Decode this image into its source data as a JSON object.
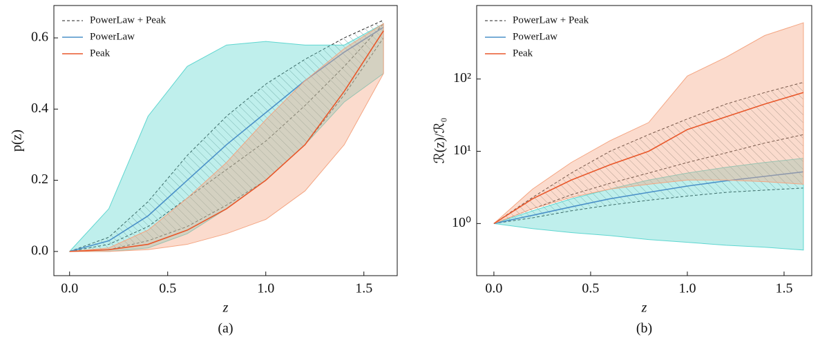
{
  "chart_data": [
    {
      "type": "line",
      "caption": "(a)",
      "xlabel": "z",
      "ylabel": "p(z)",
      "log_y": false,
      "xlim": [
        -0.08,
        1.67
      ],
      "ylim": [
        -0.068,
        0.691
      ],
      "xticks": [
        {
          "value": 0,
          "label": "0.0"
        },
        0.5,
        {
          "value": 1,
          "label": "1.0"
        },
        1.5
      ],
      "yticks": [
        {
          "value": 0,
          "label": "0.0"
        },
        0.2,
        0.4,
        0.6
      ],
      "legend": "upper left",
      "x": [
        0,
        0.2,
        0.4,
        0.6,
        0.8,
        1.0,
        1.2,
        1.4,
        1.6
      ],
      "series": [
        {
          "name": "PowerLaw + Peak",
          "color": "#222222",
          "dash": true,
          "values": [
            0,
            0.02,
            0.07,
            0.15,
            0.23,
            0.31,
            0.41,
            0.52,
            0.64
          ],
          "lower": [
            0,
            0.005,
            0.03,
            0.07,
            0.13,
            0.2,
            0.3,
            0.44,
            0.6
          ],
          "upper": [
            0,
            0.04,
            0.14,
            0.27,
            0.38,
            0.47,
            0.54,
            0.6,
            0.65
          ]
        },
        {
          "name": "PowerLaw",
          "color": "#4a90c8",
          "band_color": "#5ed6d0",
          "values": [
            0,
            0.03,
            0.1,
            0.2,
            0.3,
            0.39,
            0.48,
            0.56,
            0.63
          ],
          "lower": [
            0,
            0.0,
            0.01,
            0.05,
            0.12,
            0.2,
            0.3,
            0.42,
            0.5
          ],
          "upper": [
            0,
            0.12,
            0.38,
            0.52,
            0.58,
            0.59,
            0.58,
            0.58,
            0.64
          ]
        },
        {
          "name": "Peak",
          "color": "#e8572a",
          "band_color": "#f4a582",
          "values": [
            0,
            0.005,
            0.02,
            0.06,
            0.12,
            0.2,
            0.3,
            0.45,
            0.62
          ],
          "lower": [
            0,
            0,
            0.005,
            0.02,
            0.05,
            0.09,
            0.17,
            0.3,
            0.5
          ],
          "upper": [
            0,
            0.01,
            0.06,
            0.15,
            0.25,
            0.37,
            0.48,
            0.57,
            0.64
          ]
        }
      ]
    },
    {
      "type": "line",
      "caption": "(b)",
      "xlabel": "z",
      "ylabel": "ℛ(z)/ℛ₀",
      "log_y": true,
      "xlim": [
        -0.089,
        1.643
      ],
      "ylim": [
        0.19,
        1040
      ],
      "xticks": [
        {
          "value": 0,
          "label": "0.0"
        },
        0.5,
        {
          "value": 1,
          "label": "1.0"
        },
        1.5
      ],
      "yticks": [
        {
          "value": 1,
          "label": "10⁰"
        },
        {
          "value": 10,
          "label": "10¹"
        },
        {
          "value": 100,
          "label": "10²"
        }
      ],
      "legend": "upper left",
      "x": [
        0,
        0.2,
        0.4,
        0.6,
        0.8,
        1.0,
        1.2,
        1.4,
        1.6
      ],
      "series": [
        {
          "name": "PowerLaw + Peak",
          "color": "#222222",
          "dash": true,
          "values": [
            1,
            1.6,
            2.5,
            3.6,
            5,
            7,
            9.5,
            13,
            17
          ],
          "lower": [
            1,
            1.2,
            1.5,
            1.8,
            2.1,
            2.4,
            2.7,
            2.9,
            3.1
          ],
          "upper": [
            1,
            2.3,
            5,
            10,
            17,
            28,
            45,
            65,
            90
          ]
        },
        {
          "name": "PowerLaw",
          "color": "#4a90c8",
          "band_color": "#5ed6d0",
          "values": [
            1,
            1.3,
            1.7,
            2.2,
            2.7,
            3.3,
            3.9,
            4.5,
            5.2
          ],
          "lower": [
            1,
            0.85,
            0.75,
            0.68,
            0.6,
            0.55,
            0.5,
            0.47,
            0.43
          ],
          "upper": [
            1,
            1.5,
            2.2,
            3,
            4,
            5,
            6,
            7,
            8
          ]
        },
        {
          "name": "Peak",
          "color": "#e8572a",
          "band_color": "#f4a582",
          "values": [
            1,
            2.2,
            4,
            6.5,
            10,
            20,
            30,
            45,
            65
          ],
          "lower": [
            1,
            1.6,
            2.3,
            3,
            3.5,
            4,
            4,
            3.8,
            3.5
          ],
          "upper": [
            1,
            3,
            7,
            14,
            25,
            110,
            200,
            400,
            600
          ]
        }
      ]
    }
  ]
}
